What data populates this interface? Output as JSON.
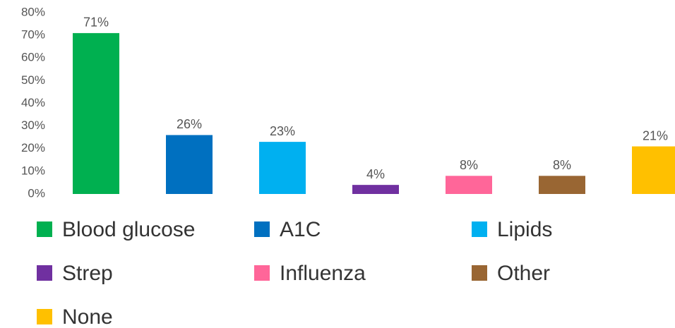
{
  "chart_data": {
    "type": "bar",
    "categories": [
      "Blood glucose",
      "A1C",
      "Lipids",
      "Strep",
      "Influenza",
      "Other",
      "None"
    ],
    "values": [
      71,
      26,
      23,
      4,
      8,
      8,
      21
    ],
    "value_labels": [
      "71%",
      "26%",
      "23%",
      "4%",
      "8%",
      "8%",
      "21%"
    ],
    "colors": [
      "#00b050",
      "#0070c0",
      "#00b0f0",
      "#7030a0",
      "#ff6699",
      "#996633",
      "#ffc000"
    ],
    "ylim": [
      0,
      80
    ],
    "yticks": [
      {
        "value": 0,
        "label": "0%"
      },
      {
        "value": 10,
        "label": "10%"
      },
      {
        "value": 20,
        "label": "20%"
      },
      {
        "value": 30,
        "label": "30%"
      },
      {
        "value": 40,
        "label": "40%"
      },
      {
        "value": 50,
        "label": "50%"
      },
      {
        "value": 60,
        "label": "60%"
      },
      {
        "value": 70,
        "label": "70%"
      },
      {
        "value": 80,
        "label": "80%"
      }
    ],
    "grid": false,
    "legend": "bottom"
  }
}
